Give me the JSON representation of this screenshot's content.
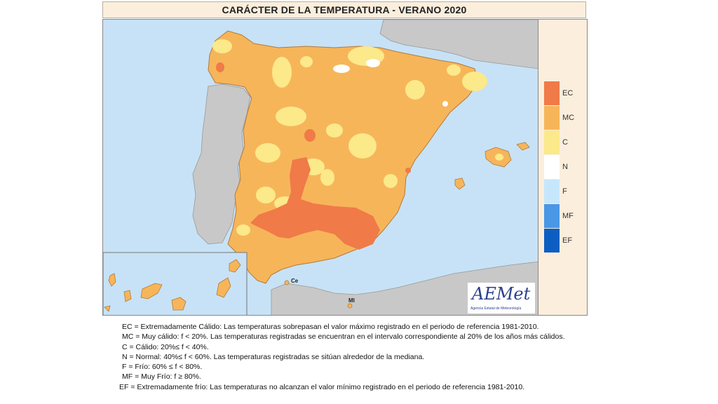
{
  "title": "CARÁCTER DE LA TEMPERATURA - VERANO 2020",
  "colors": {
    "sea": "#c7e2f6",
    "land_other": "#c8c8c8",
    "EC": "#f07a48",
    "MC": "#f7b55a",
    "C": "#fbe98a",
    "N": "#ffffff",
    "F": "#c6e7fb",
    "MF": "#4a97e6",
    "EF": "#0d5ec2"
  },
  "legend": [
    {
      "code": "EC",
      "color": "#f07a48"
    },
    {
      "code": "MC",
      "color": "#f7b55a"
    },
    {
      "code": "C",
      "color": "#fbe98a"
    },
    {
      "code": "N",
      "color": "#ffffff"
    },
    {
      "code": "F",
      "color": "#c6e7fb"
    },
    {
      "code": "MF",
      "color": "#4a97e6"
    },
    {
      "code": "EF",
      "color": "#0d5ec2"
    }
  ],
  "map_labels": {
    "ceuta": "Ce",
    "melilla": "Ml"
  },
  "logo": {
    "text": "AEMet",
    "subtitle": "Agencia Estatal de Meteorología"
  },
  "notes": {
    "ec": "EC = Extremadamente Cálido: Las temperaturas sobrepasan el valor máximo registrado en el periodo de referencia 1981-2010.",
    "mc": "MC = Muy cálido: f < 20%. Las temperaturas registradas se encuentran en el intervalo correspondiente al 20% de los años más cálidos.",
    "c": "C = Cálido: 20%≤ f < 40%.",
    "n": "N = Normal: 40%≤ f < 60%. Las temperaturas registradas se sitúan alrededor de la mediana.",
    "f": "F = Frío: 60% ≤ f < 80%.",
    "mf": "MF = Muy Frío: f ≥ 80%.",
    "ef": "EF = Extremadamente frío: Las temperaturas no alcanzan el valor mínimo registrado en el periodo de referencia 1981-2010."
  }
}
